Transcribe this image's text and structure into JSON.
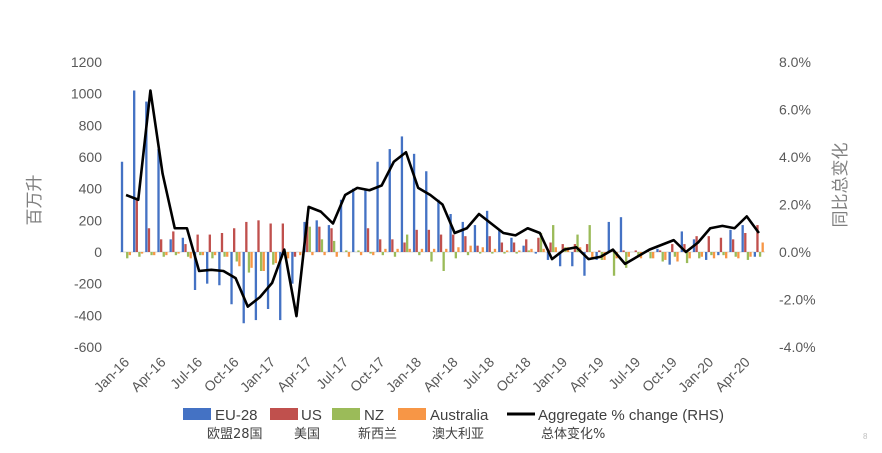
{
  "colors": {
    "eu": "#4472C4",
    "us": "#C0504D",
    "nz": "#9BBB59",
    "au": "#F79646",
    "line": "#000000",
    "grid": "#d9d9d9",
    "tick": "#595959"
  },
  "page_number": "8",
  "chart_data": {
    "type": "bar",
    "ylabel": "百万升",
    "y2label": "同比总变化",
    "ylim": [
      -600,
      1200
    ],
    "yticks": [
      -600,
      -400,
      -200,
      0,
      200,
      400,
      600,
      800,
      1000,
      1200
    ],
    "ytick_labels": [
      "-600",
      "-400",
      "-200",
      "0",
      "200",
      "400",
      "600",
      "800",
      "1000",
      "1200"
    ],
    "y2lim": [
      -4.0,
      8.0
    ],
    "y2ticks": [
      -4,
      -2,
      0,
      2,
      4,
      6,
      8
    ],
    "y2tick_labels": [
      "-4.0%",
      "-2.0%",
      "0.0%",
      "2.0%",
      "4.0%",
      "6.0%",
      "8.0%"
    ],
    "grid": false,
    "legend_position": "bottom",
    "xtick_labels": [
      "Jan-16",
      "Apr-16",
      "Jul-16",
      "Oct-16",
      "Jan-17",
      "Apr-17",
      "Jul-17",
      "Oct-17",
      "Jan-18",
      "Apr-18",
      "Jul-18",
      "Oct-18",
      "Jan-19",
      "Apr-19",
      "Jul-19",
      "Oct-19",
      "Jan-20",
      "Apr-20"
    ],
    "xtick_every": 3,
    "categories": [
      "Jan-16",
      "Feb-16",
      "Mar-16",
      "Apr-16",
      "May-16",
      "Jun-16",
      "Jul-16",
      "Aug-16",
      "Sep-16",
      "Oct-16",
      "Nov-16",
      "Dec-16",
      "Jan-17",
      "Feb-17",
      "Mar-17",
      "Apr-17",
      "May-17",
      "Jun-17",
      "Jul-17",
      "Aug-17",
      "Sep-17",
      "Oct-17",
      "Nov-17",
      "Dec-17",
      "Jan-18",
      "Feb-18",
      "Mar-18",
      "Apr-18",
      "May-18",
      "Jun-18",
      "Jul-18",
      "Aug-18",
      "Sep-18",
      "Oct-18",
      "Nov-18",
      "Dec-18",
      "Jan-19",
      "Feb-19",
      "Mar-19",
      "Apr-19",
      "May-19",
      "Jun-19",
      "Jul-19",
      "Aug-19",
      "Sep-19",
      "Oct-19",
      "Nov-19",
      "Dec-19",
      "Jan-20",
      "Feb-20",
      "Mar-20",
      "Apr-20",
      "May-20"
    ],
    "series": [
      {
        "name": "EU-28",
        "name_cn": "欧盟28国",
        "kind": "bar",
        "color_key": "eu",
        "values": [
          570,
          1020,
          950,
          650,
          80,
          90,
          -240,
          -200,
          -210,
          -330,
          -450,
          -430,
          -360,
          -430,
          -200,
          190,
          200,
          170,
          330,
          400,
          400,
          570,
          650,
          730,
          620,
          510,
          330,
          240,
          190,
          170,
          260,
          140,
          90,
          40,
          -10,
          -50,
          -90,
          -90,
          -150,
          -50,
          190,
          220,
          0,
          0,
          20,
          -80,
          130,
          80,
          -50,
          -20,
          140,
          170,
          -30
        ]
      },
      {
        "name": "US",
        "name_cn": "美国",
        "kind": "bar",
        "color_key": "us",
        "values": [
          0,
          340,
          150,
          80,
          130,
          50,
          110,
          110,
          120,
          150,
          190,
          200,
          180,
          180,
          -30,
          190,
          160,
          150,
          0,
          0,
          150,
          80,
          80,
          60,
          140,
          140,
          110,
          110,
          100,
          40,
          100,
          60,
          60,
          80,
          90,
          60,
          50,
          50,
          50,
          10,
          10,
          10,
          10,
          10,
          10,
          50,
          50,
          100,
          100,
          90,
          80,
          120,
          170
        ]
      },
      {
        "name": "NZ",
        "name_cn": "新西兰",
        "kind": "bar",
        "color_key": "nz",
        "values": [
          -40,
          -30,
          -20,
          -30,
          -20,
          -30,
          -20,
          -40,
          -30,
          -60,
          -130,
          -120,
          -80,
          -40,
          0,
          160,
          80,
          70,
          10,
          10,
          -10,
          -20,
          -30,
          110,
          -20,
          -60,
          -120,
          -40,
          -20,
          -10,
          -10,
          -10,
          -10,
          10,
          120,
          170,
          30,
          110,
          170,
          -50,
          -150,
          -100,
          -30,
          -40,
          -60,
          -30,
          -70,
          -40,
          -20,
          -20,
          -30,
          -50,
          -30
        ]
      },
      {
        "name": "Australia",
        "name_cn": "澳大利亚",
        "kind": "bar",
        "color_key": "au",
        "values": [
          -20,
          -10,
          -20,
          -20,
          -10,
          -40,
          -20,
          -20,
          -30,
          -90,
          -100,
          -120,
          -70,
          -40,
          -20,
          -20,
          -20,
          -30,
          -30,
          -20,
          -20,
          20,
          20,
          20,
          20,
          20,
          20,
          30,
          40,
          30,
          20,
          10,
          10,
          20,
          20,
          30,
          30,
          30,
          -40,
          -50,
          -40,
          -30,
          -40,
          -40,
          -50,
          -60,
          -40,
          -30,
          -40,
          -40,
          -40,
          -30,
          60
        ]
      },
      {
        "name": "Aggregate % change (RHS)",
        "name_cn": "总体变化%",
        "kind": "line",
        "color_key": "line",
        "values": [
          2.4,
          2.2,
          6.8,
          3.3,
          1.0,
          1.0,
          -0.8,
          -0.75,
          -0.8,
          -1.1,
          -2.3,
          -1.9,
          -1.3,
          0.1,
          -2.7,
          1.9,
          1.7,
          1.2,
          2.4,
          2.7,
          2.6,
          2.8,
          3.8,
          4.2,
          2.7,
          2.4,
          2.0,
          0.8,
          1.0,
          1.6,
          1.2,
          0.8,
          0.7,
          1.0,
          0.8,
          -0.3,
          0.1,
          0.2,
          -0.3,
          -0.2,
          0.1,
          -0.5,
          -0.2,
          0.1,
          0.3,
          0.5,
          0.0,
          0.4,
          1.0,
          1.1,
          1.0,
          1.5,
          0.8
        ]
      }
    ]
  }
}
